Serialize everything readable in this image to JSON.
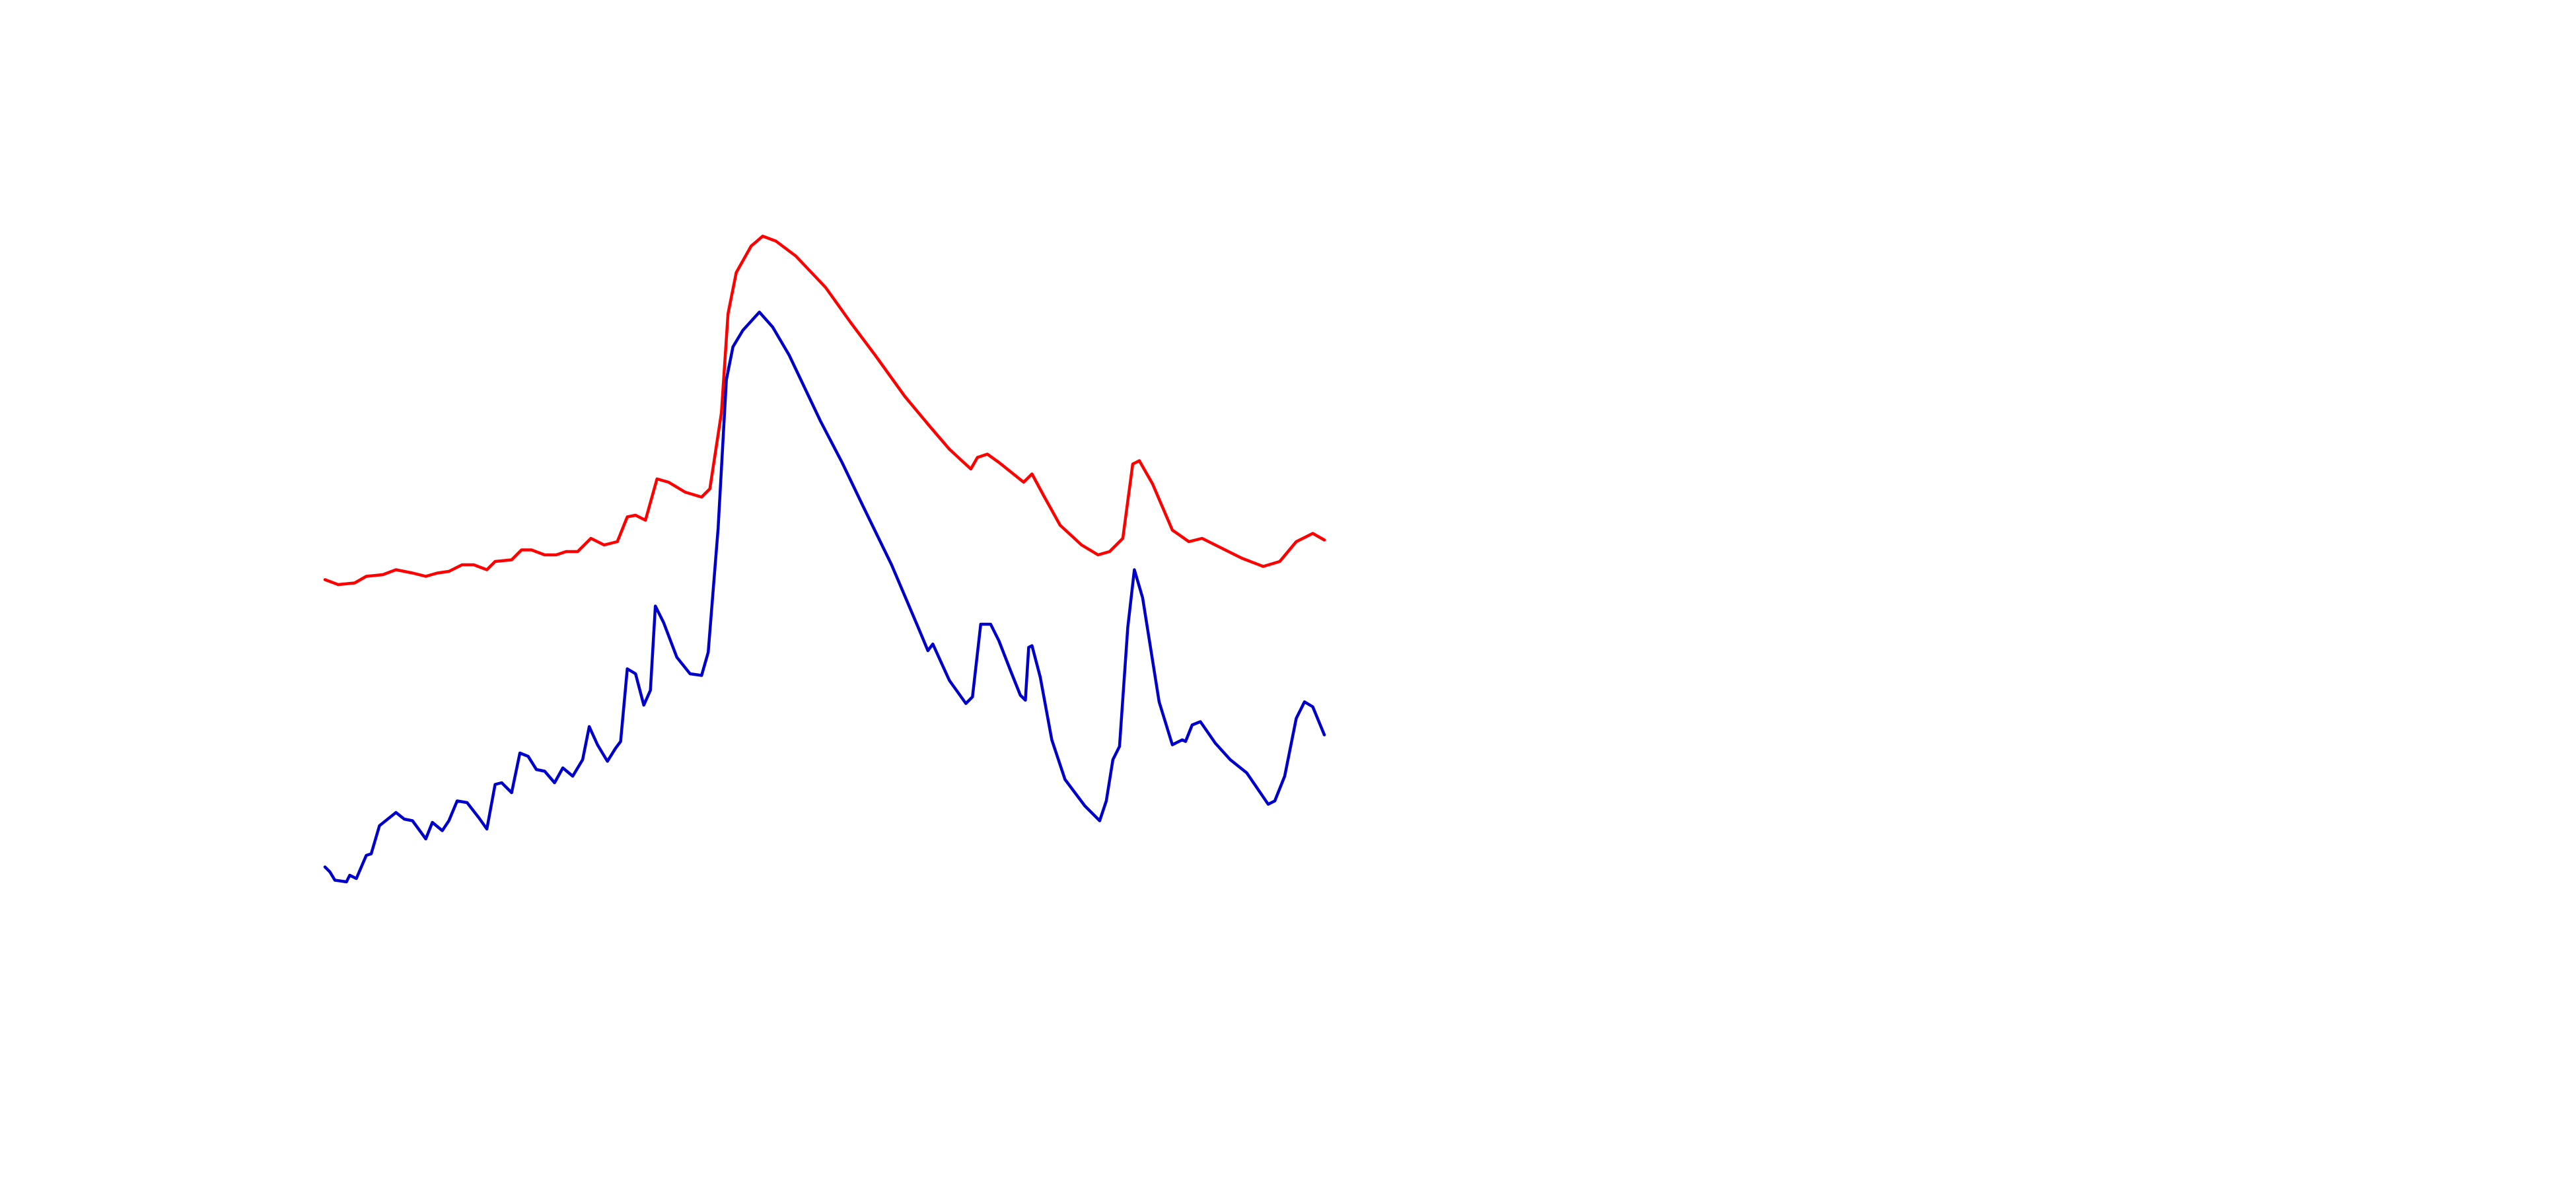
{
  "chart_data": {
    "type": "line",
    "xlim": [
      0,
      605
    ],
    "ylim": [
      0,
      600
    ],
    "series": [
      {
        "color": "#ff0000",
        "x": [
          0,
          8,
          18,
          25,
          35,
          43,
          53,
          61,
          68,
          75,
          83,
          90,
          98,
          103,
          113,
          119,
          125,
          133,
          140,
          146,
          153,
          161,
          169,
          177,
          183,
          188,
          194,
          201,
          208,
          218,
          228,
          233,
          240,
          244,
          249,
          258,
          265,
          273,
          285,
          303,
          318,
          333,
          351,
          366,
          378,
          391,
          395,
          401,
          408,
          423,
          428,
          435,
          445,
          458,
          468,
          475,
          483,
          489,
          493,
          501,
          513,
          523,
          531,
          543,
          555,
          568,
          578,
          588,
          598,
          605
        ],
        "values": [
          249,
          246,
          247,
          251,
          252,
          255,
          253,
          251,
          253,
          254,
          258,
          258,
          255,
          260,
          261,
          267,
          267,
          264,
          264,
          266,
          266,
          274,
          270,
          272,
          287,
          288,
          285,
          310,
          308,
          302,
          299,
          304,
          350,
          410,
          435,
          451,
          457,
          454,
          445,
          426,
          405,
          385,
          360,
          342,
          328,
          316,
          323,
          325,
          320,
          308,
          313,
          300,
          282,
          270,
          264,
          266,
          274,
          319,
          321,
          307,
          279,
          272,
          274,
          268,
          262,
          257,
          260,
          272,
          277,
          273
        ]
      },
      {
        "color": "#0000cc",
        "x": [
          0,
          3,
          6,
          13,
          15,
          19,
          25,
          28,
          33,
          38,
          43,
          48,
          53,
          61,
          65,
          71,
          75,
          80,
          86,
          93,
          98,
          103,
          107,
          113,
          118,
          123,
          128,
          133,
          139,
          144,
          150,
          156,
          160,
          165,
          171,
          176,
          179,
          183,
          188,
          193,
          197,
          200,
          205,
          213,
          221,
          228,
          232,
          238,
          243,
          247,
          253,
          263,
          271,
          281,
          300,
          313,
          325,
          343,
          360,
          365,
          368,
          378,
          388,
          392,
          397,
          403,
          408,
          415,
          421,
          424,
          426,
          428,
          433,
          440,
          448,
          460,
          469,
          473,
          477,
          481,
          486,
          490,
          495,
          505,
          513,
          519,
          521,
          525,
          530,
          539,
          548,
          558,
          571,
          575,
          581,
          588,
          593,
          598,
          605
        ],
        "values": [
          75,
          72,
          67,
          66,
          70,
          68,
          82,
          83,
          100,
          104,
          108,
          104,
          103,
          92,
          102,
          97,
          103,
          115,
          114,
          105,
          98,
          125,
          126,
          120,
          144,
          142,
          134,
          133,
          126,
          135,
          130,
          140,
          160,
          149,
          139,
          147,
          151,
          195,
          192,
          173,
          182,
          233,
          223,
          202,
          192,
          191,
          205,
          280,
          370,
          390,
          400,
          411,
          402,
          385,
          345,
          320,
          295,
          258,
          218,
          206,
          210,
          188,
          174,
          178,
          222,
          222,
          212,
          194,
          179,
          176,
          208,
          209,
          190,
          152,
          128,
          112,
          103,
          115,
          140,
          148,
          220,
          255,
          238,
          175,
          149,
          152,
          151,
          161,
          163,
          150,
          140,
          132,
          113,
          115,
          130,
          165,
          175,
          172,
          155
        ]
      }
    ]
  }
}
